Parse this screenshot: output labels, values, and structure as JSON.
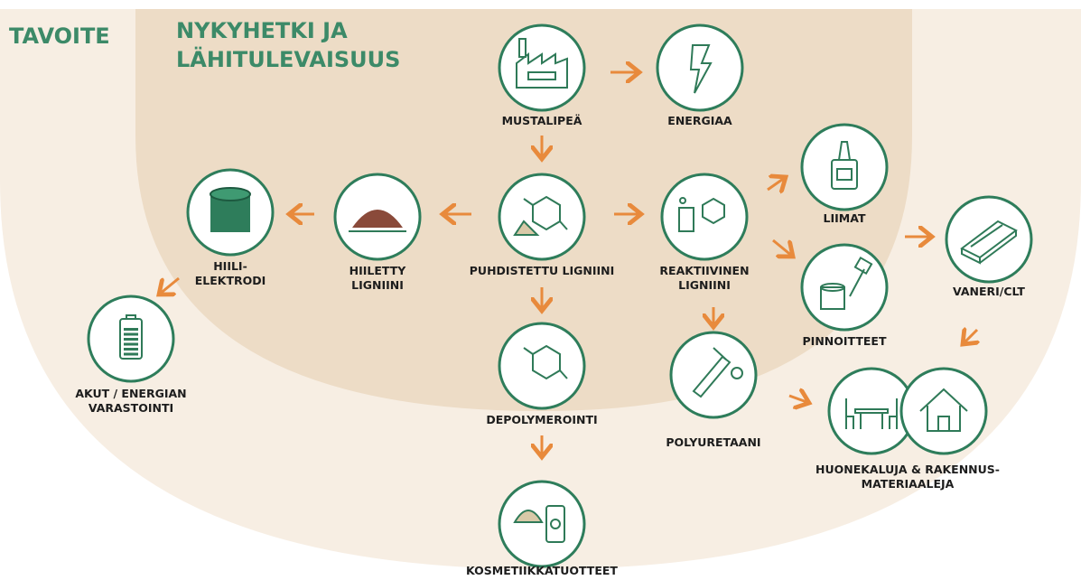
{
  "sections": {
    "goal": "TAVOITE",
    "present": [
      "NYKYHETKI JA",
      "LÄHITULEVAISUUS"
    ]
  },
  "nodes": [
    {
      "label": [
        "MUSTALIPEÄ"
      ]
    },
    {
      "label": [
        "ENERGIAA"
      ]
    },
    {
      "label": [
        "PUHDISTETTU LIGNIINI"
      ]
    },
    {
      "label": [
        "REAKTIIVINEN",
        "LIGNIINI"
      ]
    },
    {
      "label": [
        "HIILETTY",
        "LIGNIINI"
      ]
    },
    {
      "label": [
        "HIILI-",
        "ELEKTRODI"
      ]
    },
    {
      "label": [
        "AKUT / ENERGIAN",
        "VARASTOINTI"
      ]
    },
    {
      "label": [
        "LIIMAT"
      ]
    },
    {
      "label": [
        "PINNOITTEET"
      ]
    },
    {
      "label": [
        "VANERI/CLT"
      ]
    },
    {
      "label": [
        "DEPOLYMEROINTI"
      ]
    },
    {
      "label": [
        "POLYURETAANI"
      ]
    },
    {
      "label": [
        "KOSMETIIKKATUOTTEET"
      ]
    },
    {
      "label": [
        "HUONEKALUJA & RAKENNUS-",
        "MATERIAALEJA"
      ]
    }
  ]
}
